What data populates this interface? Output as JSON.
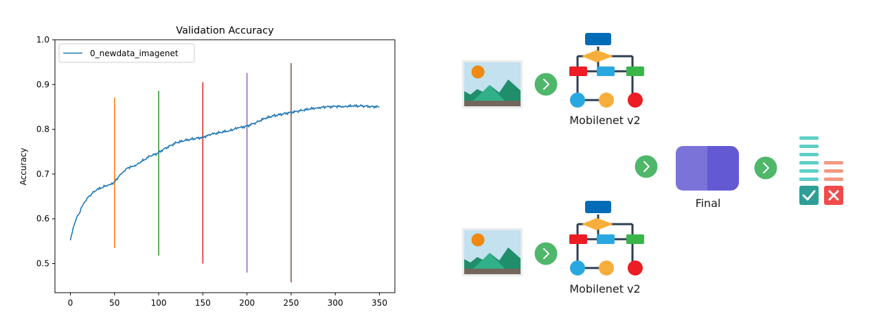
{
  "chart_data": {
    "type": "line",
    "title": "Validation Accuracy",
    "xlabel": "",
    "ylabel": "Accuracy",
    "xlim": [
      -17.5,
      367.5
    ],
    "ylim": [
      0.435,
      1.0
    ],
    "x_ticks": [
      0,
      50,
      100,
      150,
      200,
      250,
      300,
      350
    ],
    "y_ticks": [
      0.5,
      0.6,
      0.7,
      0.8,
      0.9,
      1.0
    ],
    "y_tick_labels": [
      "0.5",
      "0.6",
      "0.7",
      "0.8",
      "0.9",
      "1.0"
    ],
    "legend": "upper-left",
    "grid": false,
    "series": [
      {
        "name": "0_newdata_imagenet",
        "color": "#1f77b4",
        "x": [
          0,
          2,
          4,
          6,
          8,
          10,
          12,
          14,
          16,
          18,
          20,
          25,
          30,
          35,
          40,
          45,
          50,
          55,
          60,
          65,
          70,
          75,
          80,
          85,
          90,
          95,
          100,
          105,
          110,
          120,
          130,
          140,
          150,
          160,
          170,
          180,
          190,
          200,
          210,
          220,
          230,
          240,
          250,
          260,
          270,
          280,
          290,
          300,
          310,
          320,
          330,
          340,
          350
        ],
        "y": [
          0.552,
          0.568,
          0.585,
          0.596,
          0.607,
          0.612,
          0.624,
          0.63,
          0.637,
          0.641,
          0.648,
          0.657,
          0.665,
          0.669,
          0.674,
          0.677,
          0.682,
          0.695,
          0.704,
          0.714,
          0.717,
          0.721,
          0.728,
          0.733,
          0.74,
          0.743,
          0.748,
          0.755,
          0.76,
          0.77,
          0.775,
          0.779,
          0.782,
          0.789,
          0.793,
          0.797,
          0.803,
          0.807,
          0.815,
          0.824,
          0.83,
          0.834,
          0.838,
          0.841,
          0.845,
          0.848,
          0.85,
          0.851,
          0.851,
          0.852,
          0.852,
          0.851,
          0.85
        ]
      }
    ],
    "vlines": [
      {
        "x": 50,
        "ymin": 0.535,
        "ymax": 0.871,
        "color": "#ff7f0e"
      },
      {
        "x": 100,
        "ymin": 0.518,
        "ymax": 0.886,
        "color": "#2ca02c"
      },
      {
        "x": 150,
        "ymin": 0.5,
        "ymax": 0.905,
        "color": "#d62728"
      },
      {
        "x": 200,
        "ymin": 0.48,
        "ymax": 0.926,
        "color": "#9467bd"
      },
      {
        "x": 250,
        "ymin": 0.458,
        "ymax": 0.948,
        "color": "#8c564b"
      }
    ]
  },
  "diagram": {
    "model_top_label": "Mobilenet v2",
    "model_bottom_label": "Mobilenet v2",
    "final_label": "Final",
    "icons": {
      "image": "landscape-image-icon",
      "network": "flowchart-network-icon",
      "arrow": "chevron-right-circle-icon",
      "final": "rounded-square-icon",
      "output": "checklist-icon"
    },
    "colors": {
      "arrow_circle": "#4fb76a",
      "final_block_left": "#7b73d8",
      "final_block_right": "#6359d3",
      "node_blue": "#006cb8",
      "node_red": "#ee1c25",
      "node_light_blue": "#29a8e0",
      "node_green": "#39b54a",
      "node_orange": "#f8ae3c",
      "connector": "#2c3e50",
      "check_box": "#2e9e96",
      "cross_box": "#ef4b4b",
      "list_teal": "#5ecfc9",
      "list_salmon": "#ef9a82"
    }
  }
}
